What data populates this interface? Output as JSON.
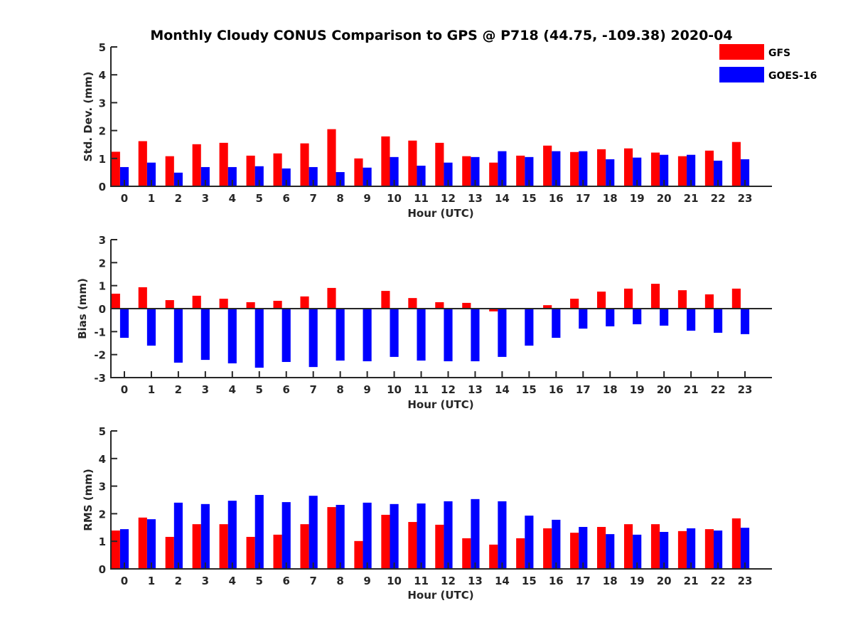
{
  "chart_data": {
    "title": "Monthly Cloudy CONUS Comparison to GPS @ P718 (44.75, -109.38) 2020-04",
    "legend": {
      "placement": "top-right",
      "entries": [
        {
          "name": "GFS",
          "color": "#ff0000"
        },
        {
          "name": "GOES-16",
          "color": "#0000ff"
        }
      ]
    },
    "panels": [
      {
        "type": "bar",
        "xlabel": "Hour (UTC)",
        "ylabel": "Std. Dev. (mm)",
        "ylim": [
          0,
          5
        ],
        "xlim": [
          -0.5,
          24
        ],
        "yticks": [
          0,
          1,
          2,
          3,
          4,
          5
        ],
        "categories": [
          "0",
          "1",
          "2",
          "3",
          "4",
          "5",
          "6",
          "7",
          "8",
          "9",
          "10",
          "11",
          "12",
          "13",
          "14",
          "15",
          "16",
          "17",
          "18",
          "19",
          "20",
          "21",
          "22",
          "23"
        ],
        "series": [
          {
            "name": "GFS",
            "values": [
              1.24,
              1.62,
              1.08,
              1.51,
              1.56,
              1.1,
              1.18,
              1.54,
              2.05,
              1.0,
              1.79,
              1.64,
              1.56,
              1.08,
              0.85,
              1.1,
              1.46,
              1.23,
              1.33,
              1.36,
              1.21,
              1.08,
              1.28,
              1.59
            ]
          },
          {
            "name": "GOES-16",
            "values": [
              0.69,
              0.85,
              0.49,
              0.69,
              0.69,
              0.72,
              0.64,
              0.69,
              0.51,
              0.67,
              1.05,
              0.74,
              0.85,
              1.05,
              1.26,
              1.05,
              1.26,
              1.26,
              0.97,
              1.03,
              1.13,
              1.13,
              0.92,
              0.97
            ]
          }
        ]
      },
      {
        "type": "bar",
        "xlabel": "Hour (UTC)",
        "ylabel": "Bias (mm)",
        "ylim": [
          -3,
          3
        ],
        "xlim": [
          -0.5,
          24
        ],
        "yticks": [
          -3,
          -2,
          -1,
          0,
          1,
          2,
          3
        ],
        "categories": [
          "0",
          "1",
          "2",
          "3",
          "4",
          "5",
          "6",
          "7",
          "8",
          "9",
          "10",
          "11",
          "12",
          "13",
          "14",
          "15",
          "16",
          "17",
          "18",
          "19",
          "20",
          "21",
          "22",
          "23"
        ],
        "series": [
          {
            "name": "GFS",
            "values": [
              0.65,
              0.93,
              0.37,
              0.56,
              0.43,
              0.28,
              0.34,
              0.53,
              0.9,
              0.0,
              0.77,
              0.46,
              0.28,
              0.25,
              -0.12,
              0.0,
              0.15,
              0.43,
              0.74,
              0.87,
              1.08,
              0.8,
              0.62,
              0.87
            ]
          },
          {
            "name": "GOES-16",
            "values": [
              -1.27,
              -1.61,
              -2.35,
              -2.23,
              -2.38,
              -2.57,
              -2.32,
              -2.54,
              -2.26,
              -2.29,
              -2.1,
              -2.26,
              -2.29,
              -2.29,
              -2.1,
              -1.61,
              -1.27,
              -0.87,
              -0.77,
              -0.68,
              -0.74,
              -0.96,
              -1.05,
              -1.11
            ]
          }
        ]
      },
      {
        "type": "bar",
        "xlabel": "Hour (UTC)",
        "ylabel": "RMS (mm)",
        "ylim": [
          0,
          5
        ],
        "xlim": [
          -0.5,
          24
        ],
        "yticks": [
          0,
          1,
          2,
          3,
          4,
          5
        ],
        "categories": [
          "0",
          "1",
          "2",
          "3",
          "4",
          "5",
          "6",
          "7",
          "8",
          "9",
          "10",
          "11",
          "12",
          "13",
          "14",
          "15",
          "16",
          "17",
          "18",
          "19",
          "20",
          "21",
          "22",
          "23"
        ],
        "series": [
          {
            "name": "GFS",
            "values": [
              1.39,
              1.86,
              1.16,
              1.62,
              1.62,
              1.16,
              1.24,
              1.62,
              2.24,
              1.01,
              1.96,
              1.7,
              1.6,
              1.11,
              0.88,
              1.11,
              1.47,
              1.31,
              1.52,
              1.62,
              1.62,
              1.37,
              1.44,
              1.83
            ]
          },
          {
            "name": "GOES-16",
            "values": [
              1.44,
              1.8,
              2.4,
              2.35,
              2.47,
              2.68,
              2.42,
              2.65,
              2.32,
              2.4,
              2.35,
              2.37,
              2.45,
              2.53,
              2.45,
              1.93,
              1.78,
              1.52,
              1.26,
              1.24,
              1.34,
              1.47,
              1.39,
              1.49
            ]
          }
        ]
      }
    ]
  }
}
